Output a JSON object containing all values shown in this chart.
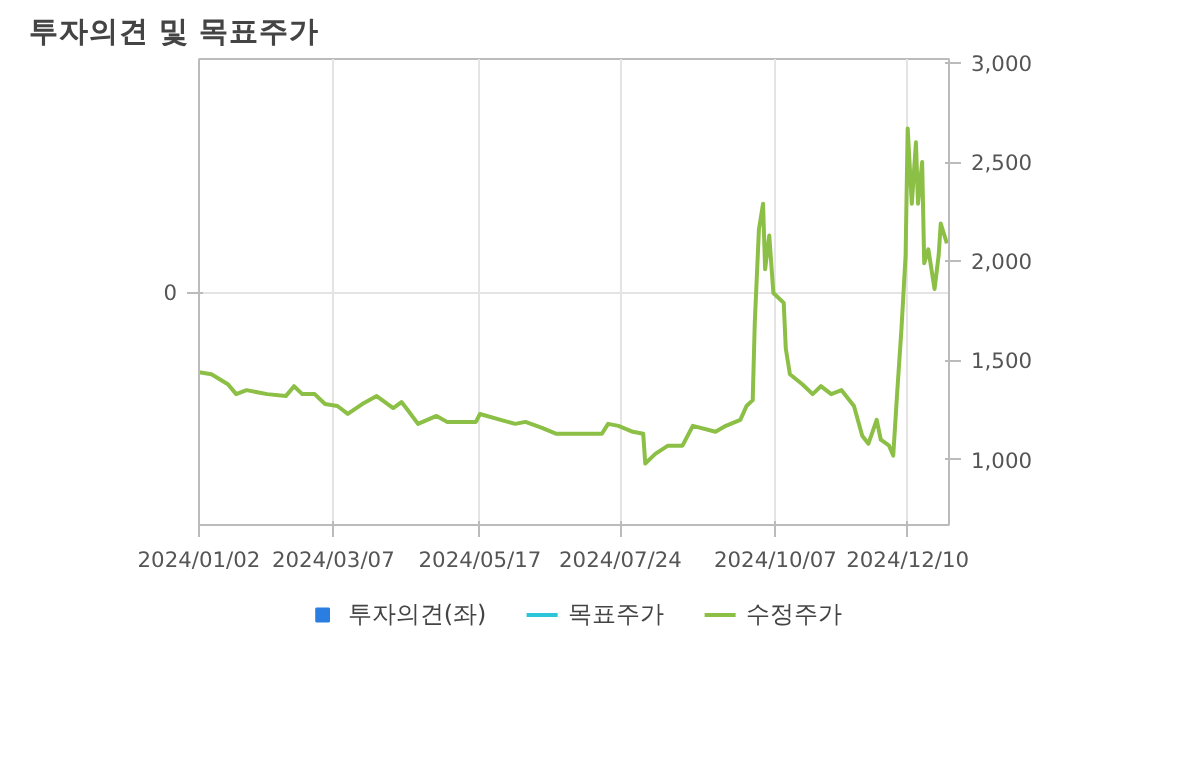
{
  "chart_data": {
    "type": "line",
    "title": "투자의견 및 목표주가",
    "xlim": [
      "2024-01-02",
      "2024-12-30"
    ],
    "xticks": [
      {
        "value": "2024-01-02",
        "label": "2024/01/02"
      },
      {
        "value": "2024-03-07",
        "label": "2024/03/07"
      },
      {
        "value": "2024-05-17",
        "label": "2024/05/17"
      },
      {
        "value": "2024-07-24",
        "label": "2024/07/24"
      },
      {
        "value": "2024-10-07",
        "label": "2024/10/07"
      },
      {
        "value": "2024-12-10",
        "label": "2024/12/10"
      }
    ],
    "annotations": [
      "0"
    ],
    "y2lim": [
      670,
      3020
    ],
    "y2ticks": [
      {
        "value": 1000,
        "label": "1,000"
      },
      {
        "value": 1500,
        "label": "1,500"
      },
      {
        "value": 2000,
        "label": "2,000"
      },
      {
        "value": 2500,
        "label": "2,500"
      },
      {
        "value": 3000,
        "label": "3,000"
      }
    ],
    "grid": true,
    "legend": "bottom",
    "series": [
      {
        "name": "투자의견(좌)",
        "type": "bar",
        "color": "#2a7de1"
      },
      {
        "name": "목표주가",
        "type": "line",
        "axis": "y2",
        "color": "#2bc4d8"
      },
      {
        "name": "수정주가",
        "axis": "y2",
        "color": "#8cbf45",
        "x": [
          "2024-01-02",
          "2024-01-08",
          "2024-01-16",
          "2024-01-20",
          "2024-01-25",
          "2024-02-04",
          "2024-02-13",
          "2024-02-17",
          "2024-02-21",
          "2024-02-27",
          "2024-03-03",
          "2024-03-09",
          "2024-03-14",
          "2024-03-21",
          "2024-03-28",
          "2024-04-05",
          "2024-04-09",
          "2024-04-12",
          "2024-04-17",
          "2024-04-26",
          "2024-05-01",
          "2024-05-15",
          "2024-05-17",
          "2024-05-27",
          "2024-06-03",
          "2024-06-08",
          "2024-06-16",
          "2024-06-23",
          "2024-06-30",
          "2024-07-07",
          "2024-07-15",
          "2024-07-18",
          "2024-07-23",
          "2024-07-30",
          "2024-08-04",
          "2024-08-05",
          "2024-08-10",
          "2024-08-13",
          "2024-08-16",
          "2024-08-23",
          "2024-08-28",
          "2024-09-08",
          "2024-09-13",
          "2024-09-20",
          "2024-09-23",
          "2024-09-26",
          "2024-09-27",
          "2024-09-29",
          "2024-10-01",
          "2024-10-02",
          "2024-10-04",
          "2024-10-06",
          "2024-10-11",
          "2024-10-12",
          "2024-10-14",
          "2024-10-20",
          "2024-10-25",
          "2024-10-29",
          "2024-11-03",
          "2024-11-08",
          "2024-11-14",
          "2024-11-18",
          "2024-11-21",
          "2024-11-25",
          "2024-11-27",
          "2024-12-01",
          "2024-12-03",
          "2024-12-05",
          "2024-12-07",
          "2024-12-09",
          "2024-12-10",
          "2024-12-12",
          "2024-12-14",
          "2024-12-15",
          "2024-12-17",
          "2024-12-18",
          "2024-12-20",
          "2024-12-23",
          "2024-12-25",
          "2024-12-26",
          "2024-12-29"
        ],
        "values": [
          1440,
          1430,
          1380,
          1330,
          1350,
          1330,
          1320,
          1370,
          1330,
          1330,
          1280,
          1270,
          1230,
          1280,
          1320,
          1260,
          1290,
          1250,
          1180,
          1220,
          1190,
          1190,
          1230,
          1200,
          1180,
          1190,
          1160,
          1130,
          1130,
          1130,
          1130,
          1180,
          1170,
          1140,
          1130,
          980,
          1030,
          1050,
          1070,
          1070,
          1170,
          1140,
          1170,
          1200,
          1270,
          1300,
          1690,
          2160,
          2290,
          1960,
          2130,
          1840,
          1790,
          1560,
          1430,
          1380,
          1330,
          1370,
          1330,
          1350,
          1270,
          1120,
          1080,
          1200,
          1100,
          1070,
          1020,
          1350,
          1660,
          2030,
          2670,
          2290,
          2600,
          2290,
          2500,
          1990,
          2060,
          1860,
          2030,
          2190,
          2090
        ]
      }
    ]
  }
}
